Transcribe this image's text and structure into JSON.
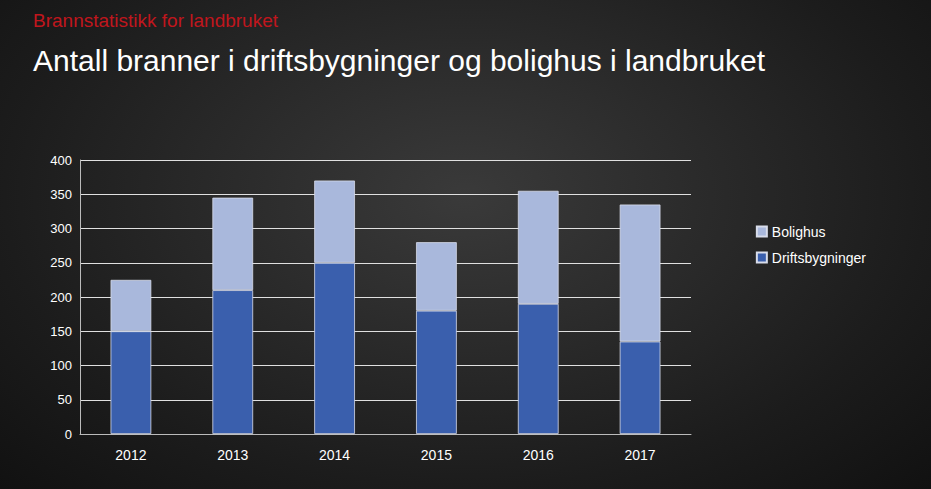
{
  "chart_data": {
    "type": "bar",
    "title": "Brannstatistikk for landbruket",
    "subtitle": "Antall branner i driftsbygninger og bolighus i landbruket",
    "categories": [
      "2012",
      "2013",
      "2014",
      "2015",
      "2016",
      "2017"
    ],
    "series": [
      {
        "name": "Driftsbygninger",
        "color": "#3a5fad",
        "values": [
          150,
          210,
          250,
          180,
          190,
          135
        ]
      },
      {
        "name": "Bolighus",
        "color": "#a9b8dc",
        "values": [
          75,
          135,
          120,
          100,
          165,
          200
        ]
      }
    ],
    "ylim": [
      0,
      400
    ],
    "yticks": [
      0,
      50,
      100,
      150,
      200,
      250,
      300,
      350,
      400
    ],
    "stacked": true,
    "grid": true,
    "legend": "right"
  }
}
